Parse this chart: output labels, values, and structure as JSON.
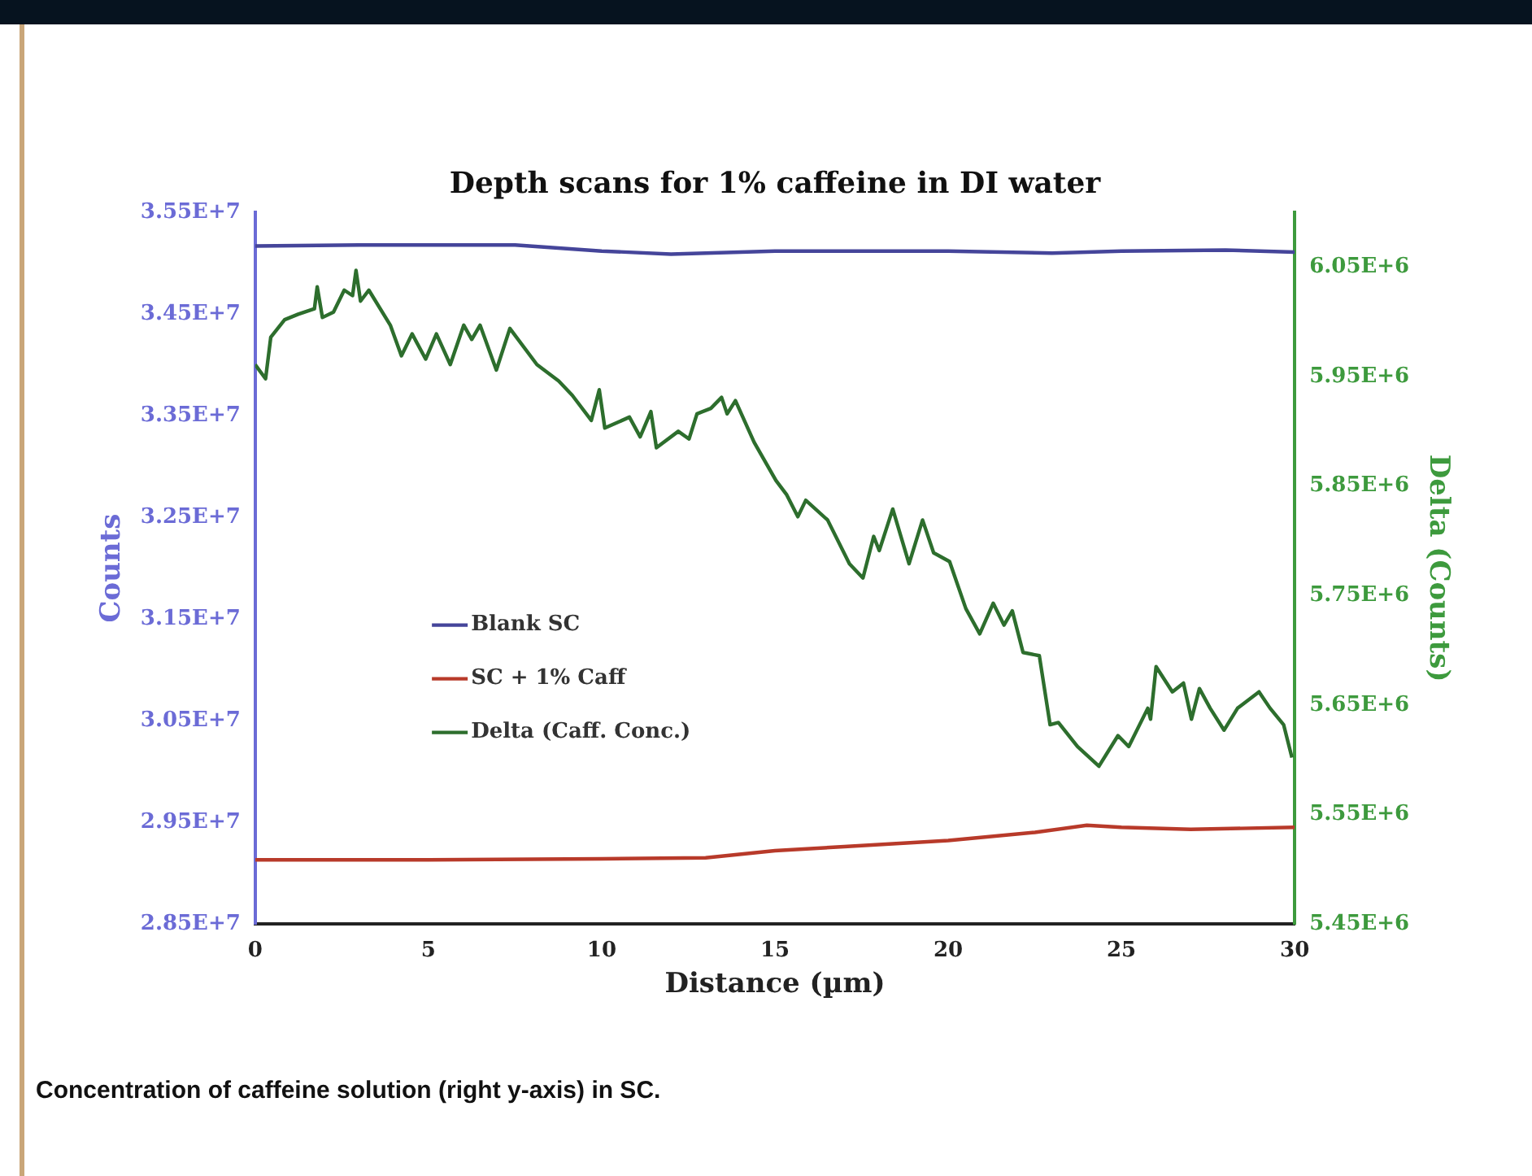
{
  "chart_data": {
    "type": "line",
    "title": "Depth scans for 1% caffeine in DI water",
    "xlabel": "Distance (µm)",
    "ylabel": "Counts",
    "y2label": "Delta (Counts)",
    "annotations": [
      "Concentration of caffeine solution (right y-axis) in SC."
    ],
    "xlim": [
      0,
      30
    ],
    "xticks": [
      0,
      5,
      10,
      15,
      20,
      25,
      30
    ],
    "ylim": [
      28500000,
      35500000
    ],
    "yticks": [
      {
        "value": 28500000,
        "label": "2.85E+7"
      },
      {
        "value": 29500000,
        "label": "2.95E+7"
      },
      {
        "value": 30500000,
        "label": "3.05E+7"
      },
      {
        "value": 31500000,
        "label": "3.15E+7"
      },
      {
        "value": 32500000,
        "label": "3.25E+7"
      },
      {
        "value": 33500000,
        "label": "3.35E+7"
      },
      {
        "value": 34500000,
        "label": "3.45E+7"
      },
      {
        "value": 35500000,
        "label": "3.55E+7"
      }
    ],
    "y2lim": [
      5450000,
      6100000
    ],
    "y2ticks": [
      {
        "value": 5450000,
        "label": "5.45E+6"
      },
      {
        "value": 5550000,
        "label": "5.55E+6"
      },
      {
        "value": 5650000,
        "label": "5.65E+6"
      },
      {
        "value": 5750000,
        "label": "5.75E+6"
      },
      {
        "value": 5850000,
        "label": "5.85E+6"
      },
      {
        "value": 5950000,
        "label": "5.95E+6"
      },
      {
        "value": 6050000,
        "label": "6.05E+6"
      }
    ],
    "grid": false,
    "legend": "left",
    "marker": "none",
    "line_style": "solid",
    "series": [
      {
        "name": "Blank SC",
        "color": "#45459a",
        "x": [
          0,
          3,
          7.5,
          10,
          12,
          15,
          20,
          23,
          25,
          28,
          30
        ],
        "values": [
          35170000,
          35180000,
          35180000,
          35120000,
          35090000,
          35120000,
          35120000,
          35100000,
          35120000,
          35130000,
          35110000
        ]
      },
      {
        "name": "SC + 1% Caff",
        "color": "#b83a2a",
        "x": [
          0,
          5,
          10,
          13,
          15,
          17,
          20,
          22.5,
          24,
          25,
          27,
          30
        ],
        "values": [
          29130000,
          29130000,
          29140000,
          29150000,
          29220000,
          29260000,
          29320000,
          29400000,
          29470000,
          29450000,
          29430000,
          29450000
        ]
      },
      {
        "name": "Delta (Caff. Conc.)",
        "color": "#2d6e2d",
        "axis": "y2",
        "x": [
          0,
          0.3,
          0.45,
          0.85,
          1.24,
          1.71,
          1.79,
          1.94,
          2.26,
          2.57,
          2.81,
          2.91,
          3.04,
          3.28,
          3.9,
          4.22,
          4.53,
          4.92,
          5.23,
          5.63,
          6.02,
          6.25,
          6.49,
          6.96,
          7.35,
          8.13,
          8.76,
          9.15,
          9.7,
          9.93,
          10.09,
          10.8,
          11.11,
          11.42,
          11.58,
          12.21,
          12.52,
          12.75,
          13.15,
          13.46,
          13.62,
          13.86,
          14.4,
          15.03,
          15.34,
          15.66,
          15.89,
          16.52,
          17.15,
          17.54,
          17.85,
          18.01,
          18.4,
          18.87,
          19.26,
          19.58,
          20.04,
          20.51,
          20.91,
          21.3,
          21.61,
          21.85,
          22.16,
          22.63,
          22.94,
          23.18,
          23.73,
          24.35,
          24.9,
          25.21,
          25.76,
          25.84,
          26,
          26.47,
          26.79,
          27.02,
          27.25,
          27.56,
          27.96,
          28.35,
          28.97,
          29.29,
          29.68,
          29.92
        ],
        "values": [
          5961000,
          5948000,
          5986000,
          6002000,
          6007000,
          6012000,
          6032000,
          6004000,
          6009000,
          6029000,
          6024000,
          6047000,
          6019000,
          6029000,
          5997000,
          5969000,
          5989000,
          5966000,
          5989000,
          5961000,
          5997000,
          5984000,
          5997000,
          5956000,
          5994000,
          5961000,
          5946000,
          5933000,
          5910000,
          5938000,
          5903000,
          5913000,
          5895000,
          5918000,
          5885000,
          5900000,
          5893000,
          5916000,
          5921000,
          5931000,
          5916000,
          5928000,
          5890000,
          5855000,
          5842000,
          5822000,
          5837000,
          5819000,
          5779000,
          5766000,
          5804000,
          5791000,
          5829000,
          5779000,
          5819000,
          5789000,
          5781000,
          5738000,
          5715000,
          5743000,
          5723000,
          5736000,
          5698000,
          5695000,
          5632000,
          5634000,
          5612000,
          5594000,
          5622000,
          5612000,
          5647000,
          5637000,
          5685000,
          5662000,
          5670000,
          5637000,
          5665000,
          5647000,
          5627000,
          5647000,
          5662000,
          5647000,
          5632000,
          5602000
        ]
      }
    ]
  }
}
